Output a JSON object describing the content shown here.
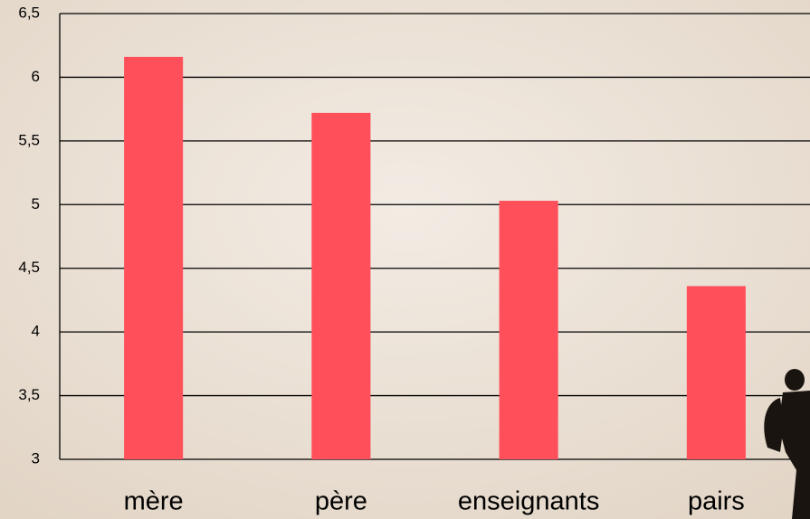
{
  "chart_data": {
    "type": "bar",
    "categories": [
      "mère",
      "père",
      "enseignants",
      "pairs"
    ],
    "values": [
      6.16,
      5.72,
      5.03,
      4.36
    ],
    "color": "#ff4f5a",
    "ylim": [
      3,
      6.5
    ],
    "yticks": [
      3,
      {
        "value": 3.5,
        "label": "3,5"
      },
      4,
      {
        "value": 4.5,
        "label": "4,5"
      },
      5,
      {
        "value": 5.5,
        "label": "5,5"
      },
      6,
      {
        "value": 6.5,
        "label": "6,5"
      }
    ],
    "grid": true
  }
}
